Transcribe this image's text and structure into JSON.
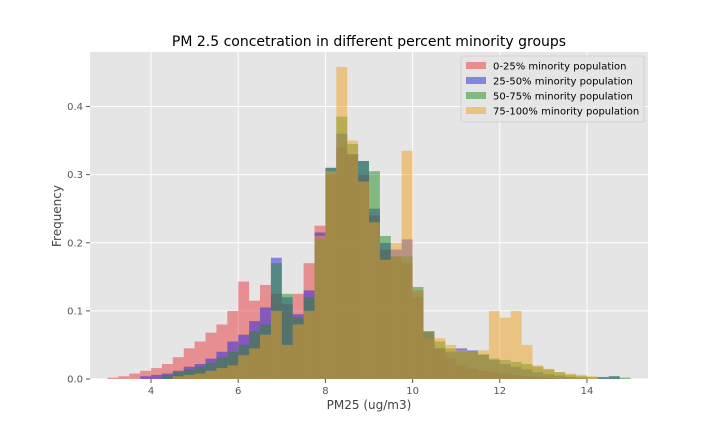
{
  "chart_data": {
    "type": "histogram",
    "title": "PM 2.5 concetration in different percent minority groups",
    "xlabel": "PM25 (ug/m3)",
    "ylabel": "Frequency",
    "xlim": [
      2.6,
      15.4
    ],
    "ylim": [
      0,
      0.48
    ],
    "xticks": [
      4,
      6,
      8,
      10,
      12,
      14
    ],
    "yticks": [
      0.0,
      0.1,
      0.2,
      0.3,
      0.4
    ],
    "ytick_labels": [
      "0.0",
      "0.1",
      "0.2",
      "0.3",
      "0.4"
    ],
    "grid": true,
    "legend_position": "top-right",
    "series": [
      {
        "name": "0-25% minority population",
        "color": "#e8383b",
        "alpha": 0.5,
        "bins": [
          [
            3.0,
            3.25,
            0.002
          ],
          [
            3.25,
            3.5,
            0.004
          ],
          [
            3.5,
            3.75,
            0.008
          ],
          [
            3.75,
            4.0,
            0.012
          ],
          [
            4.0,
            4.25,
            0.016
          ],
          [
            4.25,
            4.5,
            0.022
          ],
          [
            4.5,
            4.75,
            0.032
          ],
          [
            4.75,
            5.0,
            0.045
          ],
          [
            5.0,
            5.25,
            0.055
          ],
          [
            5.25,
            5.5,
            0.068
          ],
          [
            5.5,
            5.75,
            0.08
          ],
          [
            5.75,
            6.0,
            0.1
          ],
          [
            6.0,
            6.25,
            0.143
          ],
          [
            6.25,
            6.5,
            0.115
          ],
          [
            6.5,
            6.75,
            0.138
          ],
          [
            6.75,
            7.0,
            0.125
          ],
          [
            7.0,
            7.25,
            0.11
          ],
          [
            7.25,
            7.5,
            0.125
          ],
          [
            7.5,
            7.75,
            0.17
          ],
          [
            7.75,
            8.0,
            0.225
          ],
          [
            8.0,
            8.25,
            0.3
          ],
          [
            8.25,
            8.5,
            0.34
          ],
          [
            8.5,
            8.75,
            0.33
          ],
          [
            8.75,
            9.0,
            0.3
          ],
          [
            9.0,
            9.25,
            0.24
          ],
          [
            9.25,
            9.5,
            0.19
          ],
          [
            9.5,
            9.75,
            0.18
          ],
          [
            9.75,
            10.0,
            0.17
          ],
          [
            10.0,
            10.25,
            0.12
          ],
          [
            10.25,
            10.5,
            0.07
          ],
          [
            10.5,
            10.75,
            0.045
          ],
          [
            10.75,
            11.0,
            0.03
          ],
          [
            11.0,
            11.25,
            0.02
          ],
          [
            11.25,
            11.5,
            0.015
          ],
          [
            11.5,
            11.75,
            0.012
          ],
          [
            11.75,
            12.0,
            0.01
          ],
          [
            12.0,
            12.25,
            0.008
          ],
          [
            12.25,
            12.5,
            0.006
          ],
          [
            12.5,
            12.75,
            0.004
          ],
          [
            12.75,
            13.0,
            0.003
          ],
          [
            13.0,
            13.25,
            0.002
          ]
        ]
      },
      {
        "name": "25-50% minority population",
        "color": "#2323e6",
        "alpha": 0.5,
        "bins": [
          [
            3.75,
            4.0,
            0.004
          ],
          [
            4.0,
            4.25,
            0.006
          ],
          [
            4.25,
            4.5,
            0.008
          ],
          [
            4.5,
            4.75,
            0.012
          ],
          [
            4.75,
            5.0,
            0.018
          ],
          [
            5.0,
            5.25,
            0.022
          ],
          [
            5.25,
            5.5,
            0.03
          ],
          [
            5.5,
            5.75,
            0.04
          ],
          [
            5.75,
            6.0,
            0.055
          ],
          [
            6.0,
            6.25,
            0.065
          ],
          [
            6.25,
            6.5,
            0.085
          ],
          [
            6.5,
            6.75,
            0.105
          ],
          [
            6.75,
            7.0,
            0.178
          ],
          [
            7.0,
            7.25,
            0.12
          ],
          [
            7.25,
            7.5,
            0.095
          ],
          [
            7.5,
            7.75,
            0.13
          ],
          [
            7.75,
            8.0,
            0.215
          ],
          [
            8.0,
            8.25,
            0.31
          ],
          [
            8.25,
            8.5,
            0.36
          ],
          [
            8.5,
            8.75,
            0.33
          ],
          [
            8.75,
            9.0,
            0.32
          ],
          [
            9.0,
            9.25,
            0.25
          ],
          [
            9.25,
            9.5,
            0.2
          ],
          [
            9.5,
            9.75,
            0.19
          ],
          [
            9.75,
            10.0,
            0.205
          ],
          [
            10.0,
            10.25,
            0.13
          ],
          [
            10.25,
            10.5,
            0.06
          ],
          [
            10.5,
            10.75,
            0.045
          ],
          [
            10.75,
            11.0,
            0.04
          ],
          [
            11.0,
            11.25,
            0.045
          ],
          [
            11.25,
            11.5,
            0.042
          ],
          [
            11.5,
            11.75,
            0.036
          ],
          [
            11.75,
            12.0,
            0.028
          ],
          [
            12.0,
            12.25,
            0.022
          ],
          [
            12.25,
            12.5,
            0.018
          ],
          [
            12.5,
            12.75,
            0.014
          ],
          [
            12.75,
            13.0,
            0.01
          ],
          [
            13.0,
            13.25,
            0.007
          ],
          [
            13.25,
            13.5,
            0.005
          ],
          [
            13.5,
            13.75,
            0.003
          ],
          [
            13.75,
            14.0,
            0.002
          ],
          [
            14.25,
            14.5,
            0.003
          ],
          [
            14.5,
            14.75,
            0.004
          ]
        ]
      },
      {
        "name": "50-75% minority population",
        "color": "#228b22",
        "alpha": 0.5,
        "bins": [
          [
            4.25,
            4.5,
            0.006
          ],
          [
            4.5,
            4.75,
            0.01
          ],
          [
            4.75,
            5.0,
            0.014
          ],
          [
            5.0,
            5.25,
            0.018
          ],
          [
            5.25,
            5.5,
            0.024
          ],
          [
            5.5,
            5.75,
            0.032
          ],
          [
            5.75,
            6.0,
            0.04
          ],
          [
            6.0,
            6.25,
            0.05
          ],
          [
            6.25,
            6.5,
            0.07
          ],
          [
            6.5,
            6.75,
            0.08
          ],
          [
            6.75,
            7.0,
            0.17
          ],
          [
            7.0,
            7.25,
            0.125
          ],
          [
            7.25,
            7.5,
            0.09
          ],
          [
            7.5,
            7.75,
            0.12
          ],
          [
            7.75,
            8.0,
            0.205
          ],
          [
            8.0,
            8.25,
            0.31
          ],
          [
            8.25,
            8.5,
            0.385
          ],
          [
            8.5,
            8.75,
            0.345
          ],
          [
            8.75,
            9.0,
            0.32
          ],
          [
            9.0,
            9.25,
            0.305
          ],
          [
            9.25,
            9.5,
            0.21
          ],
          [
            9.5,
            9.75,
            0.18
          ],
          [
            9.75,
            10.0,
            0.18
          ],
          [
            10.0,
            10.25,
            0.135
          ],
          [
            10.25,
            10.5,
            0.07
          ],
          [
            10.5,
            10.75,
            0.055
          ],
          [
            10.75,
            11.0,
            0.045
          ],
          [
            11.0,
            11.25,
            0.04
          ],
          [
            11.25,
            11.5,
            0.04
          ],
          [
            11.5,
            11.75,
            0.036
          ],
          [
            11.75,
            12.0,
            0.03
          ],
          [
            12.0,
            12.25,
            0.028
          ],
          [
            12.25,
            12.5,
            0.025
          ],
          [
            12.5,
            12.75,
            0.022
          ],
          [
            12.75,
            13.0,
            0.018
          ],
          [
            13.0,
            13.25,
            0.014
          ],
          [
            13.25,
            13.5,
            0.01
          ],
          [
            13.5,
            13.75,
            0.006
          ],
          [
            13.75,
            14.0,
            0.004
          ],
          [
            14.0,
            14.25,
            0.003
          ],
          [
            14.25,
            14.5,
            0.002
          ],
          [
            14.5,
            14.75,
            0.004
          ],
          [
            14.75,
            15.0,
            0.002
          ]
        ]
      },
      {
        "name": "75-100% minority population",
        "color": "#f0a020",
        "alpha": 0.5,
        "bins": [
          [
            4.5,
            4.75,
            0.004
          ],
          [
            4.75,
            5.0,
            0.006
          ],
          [
            5.0,
            5.25,
            0.008
          ],
          [
            5.25,
            5.5,
            0.012
          ],
          [
            5.5,
            5.75,
            0.016
          ],
          [
            5.75,
            6.0,
            0.02
          ],
          [
            6.0,
            6.25,
            0.035
          ],
          [
            6.25,
            6.5,
            0.045
          ],
          [
            6.5,
            6.75,
            0.065
          ],
          [
            6.75,
            7.0,
            0.1
          ],
          [
            7.0,
            7.25,
            0.05
          ],
          [
            7.25,
            7.5,
            0.08
          ],
          [
            7.5,
            7.75,
            0.1
          ],
          [
            7.75,
            8.0,
            0.21
          ],
          [
            8.0,
            8.25,
            0.305
          ],
          [
            8.25,
            8.5,
            0.458
          ],
          [
            8.5,
            8.75,
            0.35
          ],
          [
            8.75,
            9.0,
            0.29
          ],
          [
            9.0,
            9.25,
            0.23
          ],
          [
            9.25,
            9.5,
            0.175
          ],
          [
            9.5,
            9.75,
            0.2
          ],
          [
            9.75,
            10.0,
            0.335
          ],
          [
            10.0,
            10.25,
            0.13
          ],
          [
            10.25,
            10.5,
            0.06
          ],
          [
            10.5,
            10.75,
            0.06
          ],
          [
            10.75,
            11.0,
            0.05
          ],
          [
            11.0,
            11.25,
            0.042
          ],
          [
            11.25,
            11.5,
            0.04
          ],
          [
            11.5,
            11.75,
            0.042
          ],
          [
            11.75,
            12.0,
            0.1
          ],
          [
            12.0,
            12.25,
            0.09
          ],
          [
            12.25,
            12.5,
            0.1
          ],
          [
            12.5,
            12.75,
            0.05
          ],
          [
            12.75,
            13.0,
            0.02
          ],
          [
            13.0,
            13.25,
            0.015
          ],
          [
            13.25,
            13.5,
            0.01
          ],
          [
            13.5,
            13.75,
            0.008
          ],
          [
            13.75,
            14.0,
            0.006
          ],
          [
            14.0,
            14.25,
            0.004
          ]
        ]
      }
    ]
  }
}
